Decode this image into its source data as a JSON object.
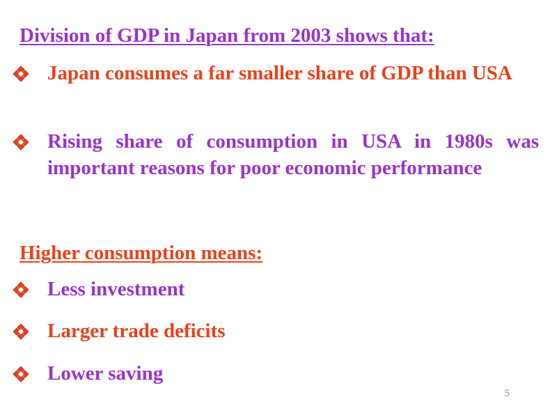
{
  "section1": {
    "heading": "Division of GDP in Japan from 2003 shows that:",
    "bullets": [
      {
        "text": "Japan consumes a far smaller share of GDP than USA",
        "icon": "diamond-bullet-icon"
      },
      {
        "text": "Rising share of consumption in USA in 1980s was important reasons for poor economic performance",
        "icon": "diamond-bullet-icon"
      }
    ]
  },
  "section2": {
    "heading": "Higher consumption means:",
    "bullets": [
      {
        "text": "Less investment",
        "icon": "diamond-bullet-icon"
      },
      {
        "text": "Larger trade deficits",
        "icon": "diamond-bullet-icon"
      },
      {
        "text": "Lower saving",
        "icon": "diamond-bullet-icon"
      }
    ]
  },
  "slide_number": "5",
  "colors": {
    "purple": "#9933cc",
    "red": "#e8421c"
  }
}
